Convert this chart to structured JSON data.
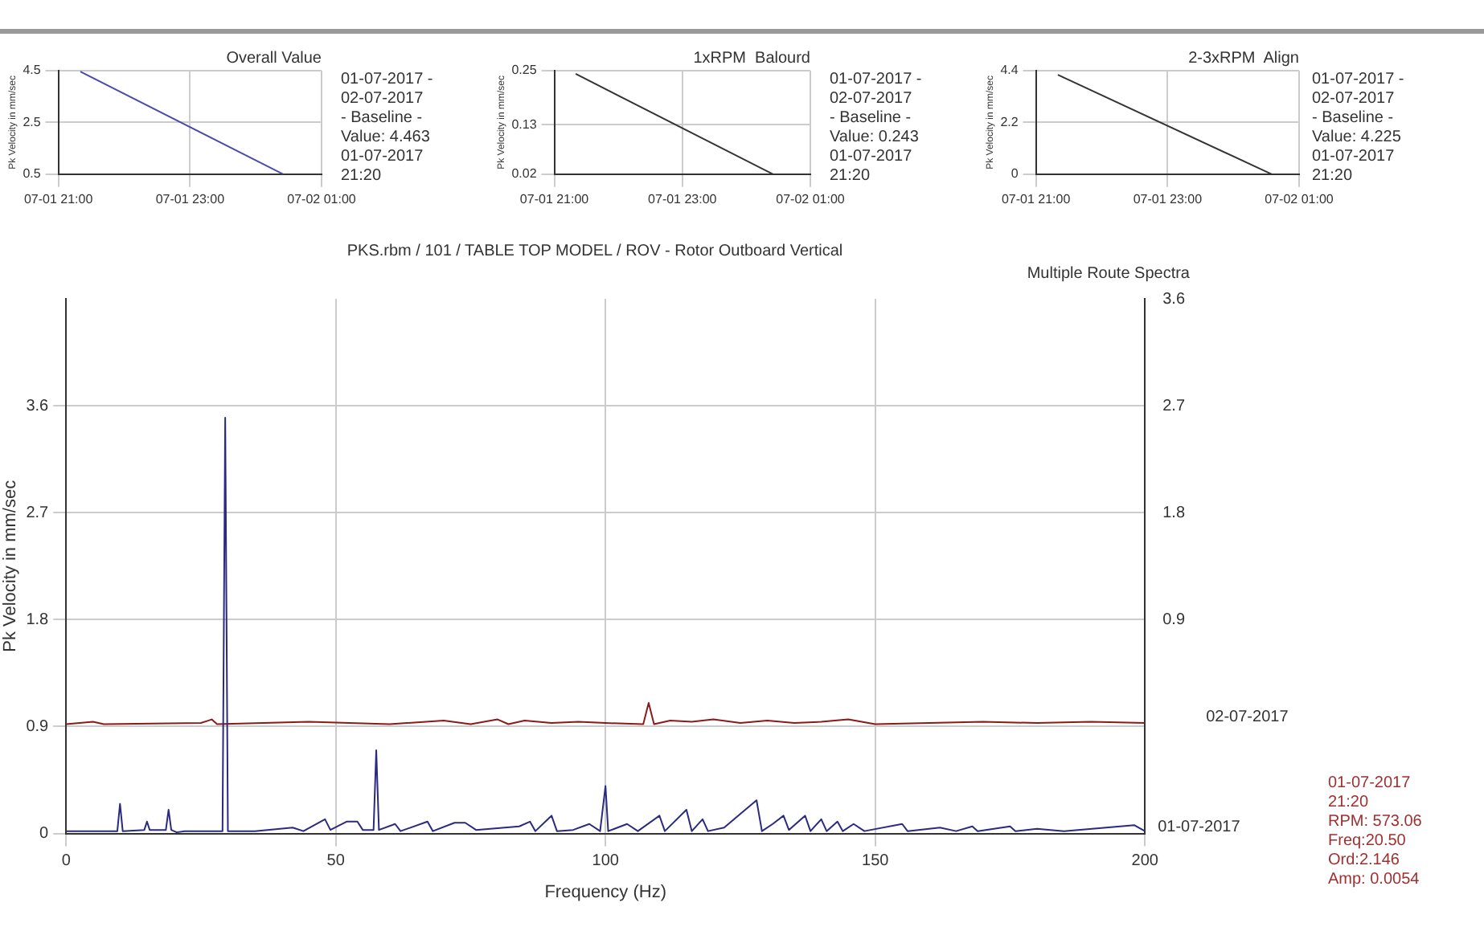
{
  "chart_data": [
    {
      "type": "line",
      "title": "Overall Value",
      "ylabel": "Pk Velocity in mm/sec",
      "annotations": [
        "01-07-2017 -",
        "02-07-2017",
        "- Baseline -",
        "Value: 4.463",
        "01-07-2017",
        "21:20"
      ],
      "x": [
        "2017-07-01T21:20",
        "2017-07-02T00:25"
      ],
      "series": [
        {
          "color": "#4a4aa8",
          "values": [
            4.463,
            0.5
          ]
        }
      ],
      "xlim": [
        "2017-07-01T21:00",
        "2017-07-02T01:00"
      ],
      "xticks": [
        {
          "value": "2017-07-01T21:00",
          "label": "07-01 21:00"
        },
        {
          "value": "2017-07-01T23:00",
          "label": "07-01 23:00"
        },
        {
          "value": "2017-07-02T01:00",
          "label": "07-02 01:00"
        }
      ],
      "ylim": [
        0.5,
        4.5
      ],
      "yticks": [
        0.5,
        2.5,
        4.5
      ],
      "grid": true
    },
    {
      "type": "line",
      "title": "1xRPM  Balourd",
      "ylabel": "Pk Velocity in mm/sec",
      "annotations": [
        "01-07-2017 -",
        "02-07-2017",
        "- Baseline -",
        "Value: 0.243",
        "01-07-2017",
        "21:20"
      ],
      "x": [
        "2017-07-01T21:20",
        "2017-07-02T00:25"
      ],
      "series": [
        {
          "color": "#333333",
          "values": [
            0.243,
            0.02
          ]
        }
      ],
      "xlim": [
        "2017-07-01T21:00",
        "2017-07-02T01:00"
      ],
      "xticks": [
        {
          "value": "2017-07-01T21:00",
          "label": "07-01 21:00"
        },
        {
          "value": "2017-07-01T23:00",
          "label": "07-01 23:00"
        },
        {
          "value": "2017-07-02T01:00",
          "label": "07-02 01:00"
        }
      ],
      "ylim": [
        0.02,
        0.25
      ],
      "yticks": [
        0.02,
        0.13,
        0.25
      ],
      "grid": true
    },
    {
      "type": "line",
      "title": "2-3xRPM  Align",
      "ylabel": "Pk Velocity in mm/sec",
      "annotations": [
        "01-07-2017 -",
        "02-07-2017",
        "- Baseline -",
        "Value: 4.225",
        "01-07-2017",
        "21:20"
      ],
      "x": [
        "2017-07-01T21:20",
        "2017-07-02T00:35"
      ],
      "series": [
        {
          "color": "#333333",
          "values": [
            4.225,
            0
          ]
        }
      ],
      "xlim": [
        "2017-07-01T21:00",
        "2017-07-02T01:00"
      ],
      "xticks": [
        {
          "value": "2017-07-01T21:00",
          "label": "07-01 21:00"
        },
        {
          "value": "2017-07-01T23:00",
          "label": "07-01 23:00"
        },
        {
          "value": "2017-07-02T01:00",
          "label": "07-02 01:00"
        }
      ],
      "ylim": [
        0,
        4.4
      ],
      "yticks": [
        0,
        2.2,
        4.4
      ],
      "grid": true
    },
    {
      "type": "line",
      "title": "PKS.rbm / 101 / TABLE TOP MODEL / ROV - Rotor Outboard Vertical",
      "subtitle": "Multiple Route Spectra",
      "xlabel": "Frequency (Hz)",
      "ylabel": "Pk Velocity in mm/sec",
      "annotations": [
        "01-07-2017\n21:20\nRPM: 573.06\nFreq:20.50\nOrd:2.146\nAmp: 0.0054"
      ],
      "series": [
        {
          "name": "01-07-2017",
          "color": "#2a2a80",
          "x": [
            0,
            9.5,
            10,
            10.5,
            14.5,
            15,
            15.5,
            18.5,
            19,
            19.5,
            20.5,
            22,
            29,
            29.5,
            30,
            35,
            42,
            44,
            48,
            49,
            52,
            54,
            55,
            57,
            57.5,
            58,
            61,
            62,
            67,
            68,
            72,
            74,
            76,
            84,
            86,
            87,
            90,
            91,
            94,
            97,
            99,
            100,
            100.5,
            104,
            106,
            110,
            111,
            115,
            116,
            118,
            119,
            122,
            128,
            129,
            131,
            133,
            134,
            137,
            138,
            140,
            141,
            143,
            144,
            146,
            148,
            155,
            156,
            162,
            165,
            168,
            169,
            175,
            176,
            180,
            185,
            198,
            200
          ],
          "values": [
            0.02,
            0.02,
            0.25,
            0.02,
            0.03,
            0.1,
            0.03,
            0.03,
            0.2,
            0.03,
            0.01,
            0.02,
            0.02,
            3.5,
            0.02,
            0.02,
            0.05,
            0.02,
            0.12,
            0.03,
            0.1,
            0.1,
            0.03,
            0.03,
            0.7,
            0.03,
            0.08,
            0.02,
            0.1,
            0.02,
            0.09,
            0.09,
            0.03,
            0.06,
            0.1,
            0.02,
            0.15,
            0.02,
            0.03,
            0.08,
            0.02,
            0.4,
            0.02,
            0.08,
            0.02,
            0.15,
            0.02,
            0.2,
            0.02,
            0.12,
            0.02,
            0.05,
            0.28,
            0.02,
            0.08,
            0.15,
            0.03,
            0.15,
            0.02,
            0.12,
            0.02,
            0.1,
            0.02,
            0.08,
            0.02,
            0.08,
            0.02,
            0.05,
            0.02,
            0.06,
            0.02,
            0.06,
            0.02,
            0.04,
            0.02,
            0.07,
            0.02
          ]
        },
        {
          "name": "02-07-2017",
          "color": "#8b1a1a",
          "axis": "y2",
          "x": [
            0,
            5,
            7,
            25,
            27,
            28,
            45,
            60,
            70,
            75,
            80,
            82,
            85,
            90,
            95,
            100,
            107,
            108,
            109,
            112,
            116,
            120,
            125,
            130,
            135,
            140,
            145,
            150,
            160,
            170,
            180,
            190,
            200
          ],
          "values": [
            0.02,
            0.04,
            0.02,
            0.03,
            0.06,
            0.02,
            0.04,
            0.02,
            0.05,
            0.02,
            0.06,
            0.02,
            0.05,
            0.03,
            0.04,
            0.03,
            0.02,
            0.2,
            0.02,
            0.05,
            0.04,
            0.06,
            0.03,
            0.05,
            0.03,
            0.04,
            0.06,
            0.02,
            0.03,
            0.04,
            0.03,
            0.04,
            0.03
          ]
        }
      ],
      "xlim": [
        0,
        200
      ],
      "xticks": [
        0,
        50,
        100,
        150,
        200
      ],
      "ylim": [
        0,
        4.5
      ],
      "yticks": [
        0,
        0.9,
        1.8,
        2.7,
        3.6
      ],
      "y2lim": [
        -0.9,
        3.6
      ],
      "y2ticks": [
        0.9,
        1.8,
        2.7,
        3.6
      ],
      "grid": true
    }
  ]
}
